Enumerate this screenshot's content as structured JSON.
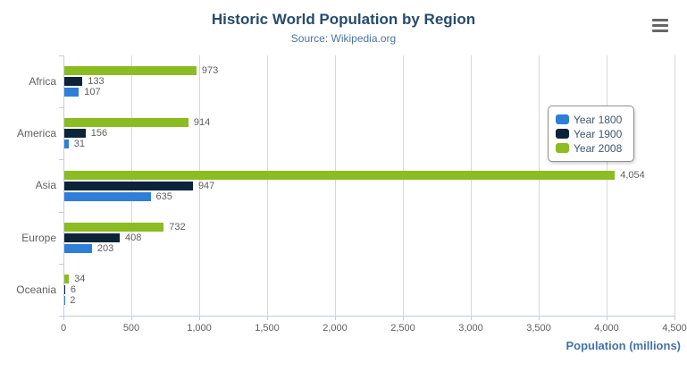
{
  "title": "Historic World Population by Region",
  "subtitle": "Source: Wikipedia.org",
  "export_menu": {
    "icon": "hamburger-menu-icon",
    "color": "#666666"
  },
  "palette": {
    "title_color": "#274b6d",
    "subtitle_color": "#4d759e",
    "axis_title_color": "#4572a7",
    "axis_label_color": "#606060",
    "axis_line_color": "#c0d0e0",
    "gridline_color": "#d8d8d8",
    "legend_text_color": "#3e576f"
  },
  "chart_data": {
    "type": "bar",
    "orientation": "horizontal",
    "title": "Historic World Population by Region",
    "subtitle": "Source: Wikipedia.org",
    "categories": [
      "Africa",
      "America",
      "Asia",
      "Europe",
      "Oceania"
    ],
    "series": [
      {
        "name": "Year 1800",
        "color": "#2f7ed8",
        "values": [
          107,
          31,
          635,
          203,
          2
        ]
      },
      {
        "name": "Year 1900",
        "color": "#0d233a",
        "values": [
          133,
          156,
          947,
          408,
          6
        ]
      },
      {
        "name": "Year 2008",
        "color": "#8bbc21",
        "values": [
          973,
          914,
          4054,
          732,
          34
        ]
      }
    ],
    "bar_display_order_top_to_bottom": [
      "Year 2008",
      "Year 1900",
      "Year 1800"
    ],
    "data_labels_shown": true,
    "xlabel": "Population (millions)",
    "ylabel": "",
    "xlim": [
      0,
      4500
    ],
    "x_tick_interval": 500,
    "x_tick_labels": [
      "0",
      "500",
      "1,000",
      "1,500",
      "2,000",
      "2,500",
      "3,000",
      "3,500",
      "4,000",
      "4,500"
    ],
    "grid": true,
    "legend_position": "right-inside",
    "legend_entries": [
      "Year 1800",
      "Year 1900",
      "Year 2008"
    ]
  }
}
